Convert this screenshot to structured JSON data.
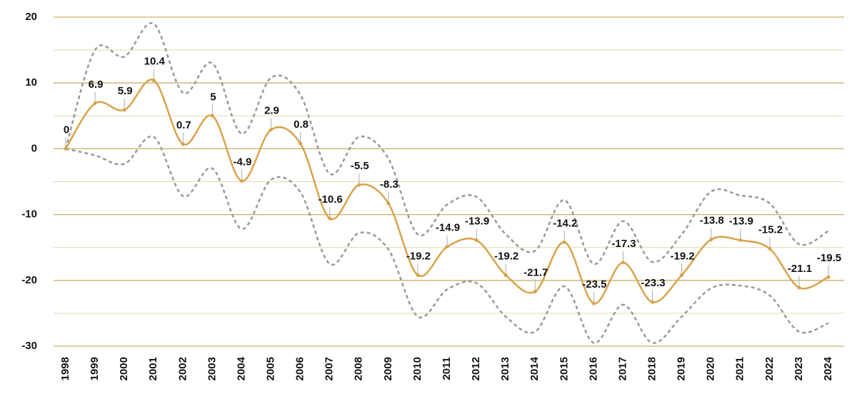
{
  "chart_data": {
    "type": "line",
    "categories": [
      "1998",
      "1999",
      "2000",
      "2001",
      "2002",
      "2003",
      "2004",
      "2005",
      "2006",
      "2007",
      "2008",
      "2009",
      "2010",
      "2011",
      "2012",
      "2013",
      "2014",
      "2015",
      "2016",
      "2017",
      "2018",
      "2019",
      "2020",
      "2021",
      "2022",
      "2023",
      "2024"
    ],
    "series": [
      {
        "color": "#d9a34a",
        "style": "solid",
        "data_labels": true,
        "values": [
          0,
          6.9,
          5.9,
          10.4,
          0.7,
          5,
          -4.9,
          2.9,
          0.8,
          -10.6,
          -5.5,
          -8.3,
          -19.2,
          -14.9,
          -13.9,
          -19.2,
          -21.7,
          -14.2,
          -23.5,
          -17.3,
          -23.3,
          -19.2,
          -13.8,
          -13.9,
          -15.2,
          -21.1,
          -19.5
        ]
      },
      {
        "color": "#999999",
        "style": "dashed",
        "data_labels": false,
        "values": [
          0,
          15,
          14,
          19,
          8.5,
          13,
          2.3,
          10.8,
          8.2,
          -3.8,
          1.8,
          -1.5,
          -13,
          -8.5,
          -7.3,
          -13,
          -15.5,
          -7.8,
          -17.5,
          -11,
          -17.2,
          -13,
          -6.5,
          -7.1,
          -8.3,
          -14.5,
          -12.5
        ]
      },
      {
        "color": "#999999",
        "style": "dashed",
        "data_labels": false,
        "values": [
          0,
          -1,
          -2.3,
          1.8,
          -7.2,
          -3,
          -12.2,
          -4.7,
          -6.6,
          -17.5,
          -12.8,
          -15.3,
          -25.5,
          -21.4,
          -20.4,
          -25.5,
          -27.8,
          -20.9,
          -29.5,
          -23.7,
          -29.5,
          -25.5,
          -21.2,
          -20.8,
          -22.3,
          -27.8,
          -26.5
        ]
      }
    ],
    "ylim": [
      -30,
      20
    ],
    "yticks": [
      -30,
      -20,
      -10,
      0,
      10,
      20
    ],
    "minor_gridlines": [
      -25,
      -15,
      -5,
      5,
      15
    ],
    "grid": true,
    "grid_color": "#c8b068",
    "smooth": true
  }
}
